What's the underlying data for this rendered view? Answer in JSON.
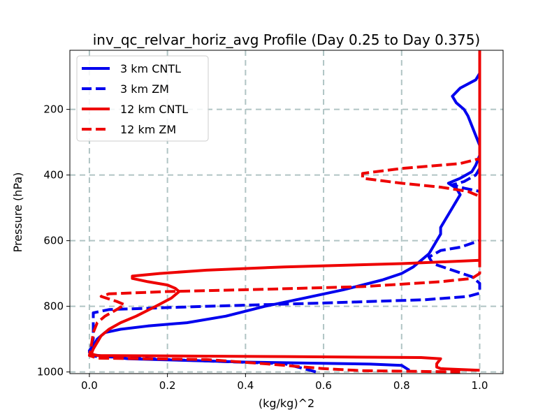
{
  "chart_data": {
    "type": "line",
    "title": "inv_qc_relvar_horiz_avg Profile (Day 0.25 to Day 0.375)",
    "xlabel": "(kg/kg)^2",
    "ylabel": "Pressure (hPa)",
    "xlim": [
      -0.05,
      1.06
    ],
    "ylim": [
      1005,
      20
    ],
    "y_inverted": true,
    "grid": true,
    "legend_position": "upper-left",
    "xticks": [
      0.0,
      0.2,
      0.4,
      0.6,
      0.8,
      1.0
    ],
    "xtick_labels": [
      "0.0",
      "0.2",
      "0.4",
      "0.6",
      "0.8",
      "1.0"
    ],
    "yticks": [
      200,
      400,
      600,
      800,
      1000
    ],
    "ytick_labels": [
      "200",
      "400",
      "600",
      "800",
      "1000"
    ],
    "series": [
      {
        "name": "3 km CNTL",
        "color": "#0000ee",
        "dashed": false,
        "points": [
          [
            1.0,
            20
          ],
          [
            1.0,
            60
          ],
          [
            1.0,
            90
          ],
          [
            0.99,
            110
          ],
          [
            0.95,
            135
          ],
          [
            0.93,
            160
          ],
          [
            0.94,
            180
          ],
          [
            0.96,
            200
          ],
          [
            0.97,
            220
          ],
          [
            0.98,
            250
          ],
          [
            0.99,
            280
          ],
          [
            1.0,
            310
          ],
          [
            1.0,
            340
          ],
          [
            0.99,
            370
          ],
          [
            0.98,
            390
          ],
          [
            0.95,
            410
          ],
          [
            0.92,
            425
          ],
          [
            0.94,
            440
          ],
          [
            0.95,
            460
          ],
          [
            0.94,
            480
          ],
          [
            0.93,
            500
          ],
          [
            0.92,
            520
          ],
          [
            0.91,
            540
          ],
          [
            0.9,
            560
          ],
          [
            0.9,
            580
          ],
          [
            0.89,
            600
          ],
          [
            0.88,
            620
          ],
          [
            0.87,
            640
          ],
          [
            0.85,
            660
          ],
          [
            0.83,
            680
          ],
          [
            0.8,
            700
          ],
          [
            0.75,
            720
          ],
          [
            0.65,
            750
          ],
          [
            0.55,
            775
          ],
          [
            0.45,
            800
          ],
          [
            0.35,
            830
          ],
          [
            0.25,
            850
          ],
          [
            0.15,
            860
          ],
          [
            0.08,
            870
          ],
          [
            0.04,
            880
          ],
          [
            0.02,
            900
          ],
          [
            0.01,
            920
          ],
          [
            0.0,
            935
          ],
          [
            0.01,
            948
          ],
          [
            0.1,
            960
          ],
          [
            0.4,
            970
          ],
          [
            0.72,
            976
          ],
          [
            0.8,
            980
          ],
          [
            0.82,
            995
          ]
        ]
      },
      {
        "name": "3 km ZM",
        "color": "#0000ee",
        "dashed": true,
        "points": [
          [
            1.0,
            20
          ],
          [
            1.0,
            100
          ],
          [
            1.0,
            200
          ],
          [
            1.0,
            300
          ],
          [
            1.0,
            380
          ],
          [
            0.99,
            400
          ],
          [
            0.96,
            420
          ],
          [
            0.93,
            430
          ],
          [
            0.96,
            440
          ],
          [
            1.0,
            450
          ],
          [
            1.0,
            500
          ],
          [
            1.0,
            550
          ],
          [
            1.0,
            600
          ],
          [
            0.95,
            620
          ],
          [
            0.9,
            630
          ],
          [
            0.87,
            650
          ],
          [
            0.88,
            670
          ],
          [
            0.93,
            690
          ],
          [
            0.98,
            710
          ],
          [
            1.0,
            730
          ],
          [
            1.0,
            760
          ],
          [
            0.97,
            770
          ],
          [
            0.86,
            780
          ],
          [
            0.6,
            790
          ],
          [
            0.3,
            800
          ],
          [
            0.05,
            810
          ],
          [
            0.01,
            820
          ],
          [
            0.01,
            860
          ],
          [
            0.01,
            900
          ],
          [
            0.0,
            940
          ],
          [
            0.01,
            952
          ],
          [
            0.2,
            962
          ],
          [
            0.5,
            975
          ],
          [
            0.55,
            990
          ],
          [
            0.58,
            1000
          ]
        ]
      },
      {
        "name": "12 km CNTL",
        "color": "#ee0000",
        "dashed": false,
        "points": [
          [
            1.0,
            20
          ],
          [
            1.0,
            100
          ],
          [
            1.0,
            200
          ],
          [
            1.0,
            300
          ],
          [
            1.0,
            400
          ],
          [
            1.0,
            500
          ],
          [
            1.0,
            600
          ],
          [
            1.0,
            660
          ],
          [
            0.8,
            670
          ],
          [
            0.5,
            680
          ],
          [
            0.3,
            690
          ],
          [
            0.18,
            700
          ],
          [
            0.11,
            708
          ],
          [
            0.11,
            715
          ],
          [
            0.15,
            725
          ],
          [
            0.2,
            735
          ],
          [
            0.22,
            745
          ],
          [
            0.23,
            755
          ],
          [
            0.21,
            775
          ],
          [
            0.17,
            800
          ],
          [
            0.12,
            830
          ],
          [
            0.08,
            850
          ],
          [
            0.05,
            870
          ],
          [
            0.03,
            890
          ],
          [
            0.02,
            910
          ],
          [
            0.01,
            930
          ],
          [
            0.005,
            945
          ],
          [
            0.02,
            950
          ],
          [
            0.5,
            953
          ],
          [
            0.85,
            956
          ],
          [
            0.9,
            960
          ],
          [
            0.89,
            975
          ],
          [
            0.89,
            985
          ],
          [
            0.9,
            990
          ],
          [
            1.0,
            995
          ]
        ]
      },
      {
        "name": "12 km ZM",
        "color": "#ee0000",
        "dashed": true,
        "points": [
          [
            1.0,
            20
          ],
          [
            1.0,
            100
          ],
          [
            1.0,
            200
          ],
          [
            1.0,
            300
          ],
          [
            1.0,
            350
          ],
          [
            0.95,
            365
          ],
          [
            0.8,
            380
          ],
          [
            0.7,
            395
          ],
          [
            0.7,
            410
          ],
          [
            0.8,
            425
          ],
          [
            0.9,
            437
          ],
          [
            0.97,
            450
          ],
          [
            1.0,
            465
          ],
          [
            1.0,
            500
          ],
          [
            1.0,
            600
          ],
          [
            1.0,
            700
          ],
          [
            0.98,
            715
          ],
          [
            0.9,
            725
          ],
          [
            0.7,
            740
          ],
          [
            0.45,
            748
          ],
          [
            0.2,
            755
          ],
          [
            0.05,
            762
          ],
          [
            0.03,
            770
          ],
          [
            0.07,
            785
          ],
          [
            0.09,
            795
          ],
          [
            0.07,
            810
          ],
          [
            0.04,
            830
          ],
          [
            0.02,
            850
          ],
          [
            0.01,
            880
          ],
          [
            0.005,
            920
          ],
          [
            0.0,
            950
          ],
          [
            0.02,
            958
          ],
          [
            0.3,
            962
          ],
          [
            0.45,
            975
          ],
          [
            0.6,
            990
          ],
          [
            0.7,
            996
          ],
          [
            0.95,
            1000
          ]
        ]
      }
    ]
  }
}
